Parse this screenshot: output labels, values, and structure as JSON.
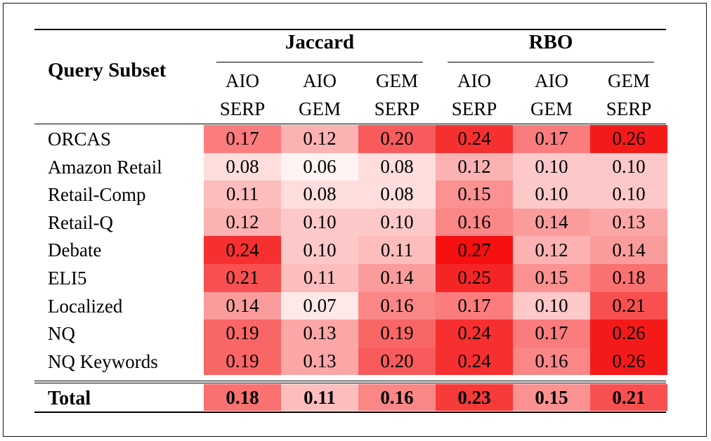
{
  "table": {
    "row_header": "Query Subset",
    "groups": [
      {
        "label": "Jaccard",
        "columns": [
          {
            "line1": "AIO",
            "line2": "SERP"
          },
          {
            "line1": "AIO",
            "line2": "GEM"
          },
          {
            "line1": "GEM",
            "line2": "SERP"
          }
        ]
      },
      {
        "label": "RBO",
        "columns": [
          {
            "line1": "AIO",
            "line2": "SERP"
          },
          {
            "line1": "AIO",
            "line2": "GEM"
          },
          {
            "line1": "GEM",
            "line2": "SERP"
          }
        ]
      }
    ],
    "rows": [
      {
        "label": "ORCAS",
        "values": [
          "0.17",
          "0.12",
          "0.20",
          "0.24",
          "0.17",
          "0.26"
        ]
      },
      {
        "label": "Amazon Retail",
        "values": [
          "0.08",
          "0.06",
          "0.08",
          "0.12",
          "0.10",
          "0.10"
        ]
      },
      {
        "label": "Retail-Comp",
        "values": [
          "0.11",
          "0.08",
          "0.08",
          "0.15",
          "0.10",
          "0.10"
        ]
      },
      {
        "label": "Retail-Q",
        "values": [
          "0.12",
          "0.10",
          "0.10",
          "0.16",
          "0.14",
          "0.13"
        ]
      },
      {
        "label": "Debate",
        "values": [
          "0.24",
          "0.10",
          "0.11",
          "0.27",
          "0.12",
          "0.14"
        ]
      },
      {
        "label": "ELI5",
        "values": [
          "0.21",
          "0.11",
          "0.14",
          "0.25",
          "0.15",
          "0.18"
        ]
      },
      {
        "label": "Localized",
        "values": [
          "0.14",
          "0.07",
          "0.16",
          "0.17",
          "0.10",
          "0.21"
        ]
      },
      {
        "label": "NQ",
        "values": [
          "0.19",
          "0.13",
          "0.19",
          "0.24",
          "0.17",
          "0.26"
        ]
      },
      {
        "label": "NQ Keywords",
        "values": [
          "0.19",
          "0.13",
          "0.20",
          "0.24",
          "0.16",
          "0.26"
        ]
      }
    ],
    "total": {
      "label": "Total",
      "values": [
        "0.18",
        "0.11",
        "0.16",
        "0.23",
        "0.15",
        "0.21"
      ]
    }
  },
  "heatmap_colors": {
    "low": "#fff3f3",
    "high": "#f50f0f"
  }
}
